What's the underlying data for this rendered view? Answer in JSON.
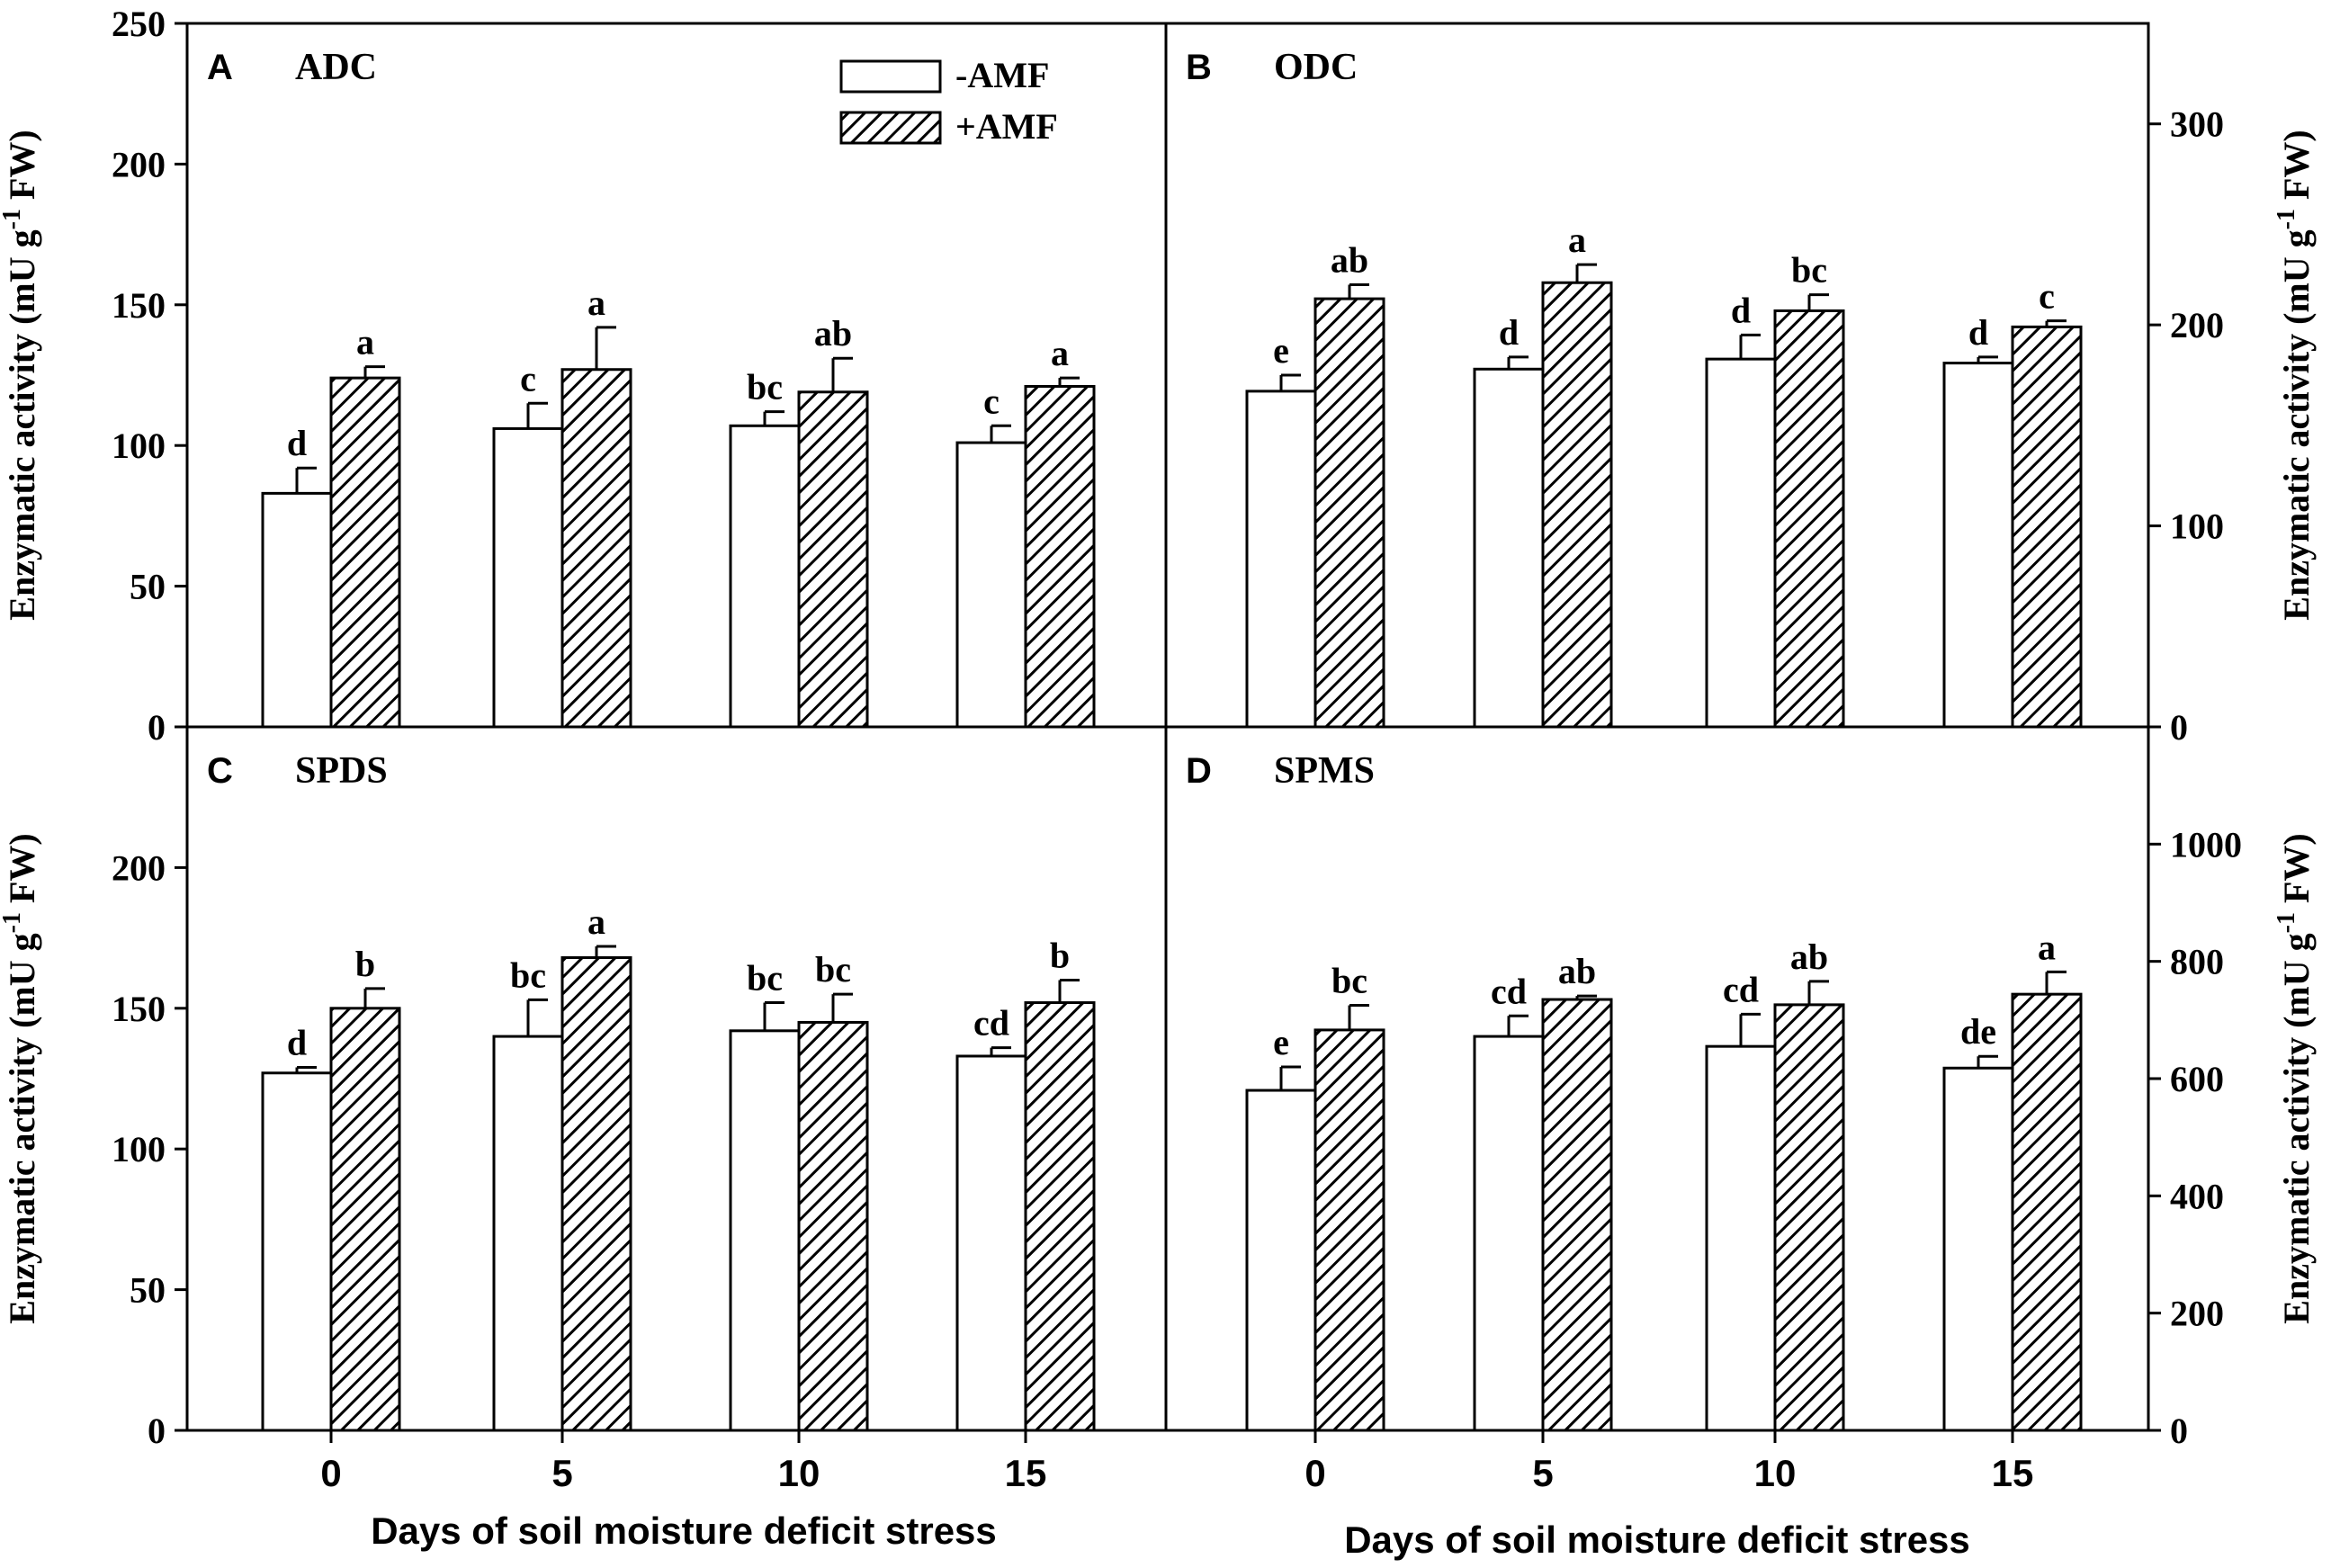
{
  "chart_data": [
    {
      "type": "bar",
      "panel": "A",
      "title": "ADC",
      "categories": [
        "0",
        "5",
        "10",
        "15"
      ],
      "series": [
        {
          "name": "-AMF",
          "values": [
            83,
            106,
            107,
            101
          ],
          "errors": [
            9,
            9,
            5,
            6
          ],
          "letters": [
            "d",
            "c",
            "bc",
            "c"
          ]
        },
        {
          "name": "+AMF",
          "values": [
            124,
            127,
            119,
            121
          ],
          "errors": [
            4,
            15,
            12,
            3
          ],
          "letters": [
            "a",
            "a",
            "ab",
            "a"
          ]
        }
      ],
      "ylim": [
        0,
        250
      ],
      "yticks": [
        0,
        50,
        100,
        150,
        200,
        250
      ],
      "ylabel": "Enzymatic activity (mU g-1 FW)",
      "yaxis_side": "left",
      "xlabel": ""
    },
    {
      "type": "bar",
      "panel": "B",
      "title": "ODC",
      "categories": [
        "0",
        "5",
        "10",
        "15"
      ],
      "series": [
        {
          "name": "-AMF",
          "values": [
            167,
            178,
            183,
            181
          ],
          "errors": [
            8,
            6,
            12,
            3
          ],
          "letters": [
            "e",
            "d",
            "d",
            "d"
          ]
        },
        {
          "name": "+AMF",
          "values": [
            213,
            221,
            207,
            199
          ],
          "errors": [
            7,
            9,
            8,
            3
          ],
          "letters": [
            "ab",
            "a",
            "bc",
            "c"
          ]
        }
      ],
      "ylim": [
        0,
        350
      ],
      "yticks": [
        0,
        100,
        200,
        300
      ],
      "ylabel": "Enzymatic activity (mU g-1 FW)",
      "yaxis_side": "right",
      "xlabel": ""
    },
    {
      "type": "bar",
      "panel": "C",
      "title": "SPDS",
      "categories": [
        "0",
        "5",
        "10",
        "15"
      ],
      "series": [
        {
          "name": "-AMF",
          "values": [
            127,
            140,
            142,
            133
          ],
          "errors": [
            2,
            13,
            10,
            3
          ],
          "letters": [
            "d",
            "bc",
            "bc",
            "cd"
          ]
        },
        {
          "name": "+AMF",
          "values": [
            150,
            168,
            145,
            152
          ],
          "errors": [
            7,
            4,
            10,
            8
          ],
          "letters": [
            "b",
            "a",
            "bc",
            "b"
          ]
        }
      ],
      "ylim": [
        0,
        250
      ],
      "yticks": [
        0,
        50,
        100,
        150,
        200
      ],
      "ylabel": "Enzymatic activity (mU g-1 FW)",
      "yaxis_side": "left",
      "xlabel": "Days of soil moisture deficit stress"
    },
    {
      "type": "bar",
      "panel": "D",
      "title": "SPMS",
      "categories": [
        "0",
        "5",
        "10",
        "15"
      ],
      "series": [
        {
          "name": "-AMF",
          "values": [
            580,
            672,
            655,
            618
          ],
          "errors": [
            40,
            35,
            55,
            20
          ],
          "letters": [
            "e",
            "cd",
            "cd",
            "de"
          ]
        },
        {
          "name": "+AMF",
          "values": [
            683,
            735,
            726,
            744
          ],
          "errors": [
            42,
            6,
            40,
            38
          ],
          "letters": [
            "bc",
            "ab",
            "ab",
            "a"
          ]
        }
      ],
      "ylim": [
        0,
        1200
      ],
      "yticks": [
        0,
        200,
        400,
        600,
        800,
        1000
      ],
      "ylabel": "Enzymatic activity (mU g-1 FW)",
      "yaxis_side": "right",
      "xlabel": "Days of soil moisture deficit stress"
    }
  ],
  "legend": {
    "placement": "top-right of panel A",
    "entries": [
      {
        "label": "-AMF",
        "style": "open"
      },
      {
        "label": "+AMF",
        "style": "hatched"
      }
    ]
  },
  "colors": {
    "ink": "#000000",
    "paper": "#ffffff"
  }
}
